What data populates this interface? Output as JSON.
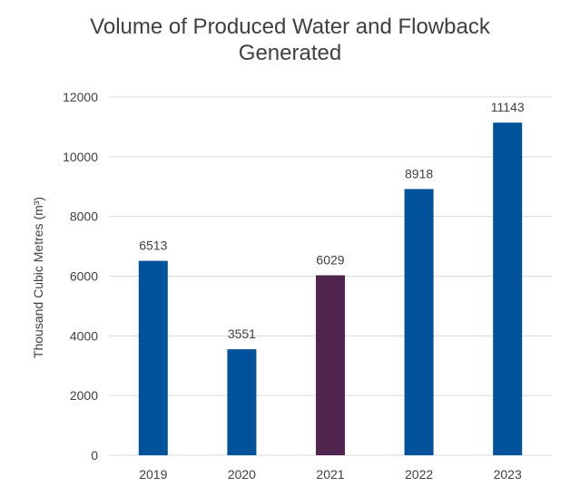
{
  "chart_data": {
    "type": "bar",
    "title_lines": [
      "Volume of Produced Water and Flowback",
      "Generated"
    ],
    "ylabel": "Thousand Cubic Metres (m³)",
    "xlabel": "",
    "categories": [
      "2019",
      "2020",
      "2021",
      "2022",
      "2023"
    ],
    "values": [
      6513,
      3551,
      6029,
      8918,
      11143
    ],
    "data_labels": [
      "6513",
      "3551",
      "6029",
      "8918",
      "11143"
    ],
    "bar_colors": [
      "#00529B",
      "#00529B",
      "#50264E",
      "#00529B",
      "#00529B"
    ],
    "ylim": [
      0,
      12000
    ],
    "yticks": [
      "0",
      "2000",
      "4000",
      "6000",
      "8000",
      "10000",
      "12000"
    ],
    "grid": true,
    "legend": "none",
    "colors": {
      "grid": "#d9d9d9",
      "text": "#404040"
    }
  }
}
